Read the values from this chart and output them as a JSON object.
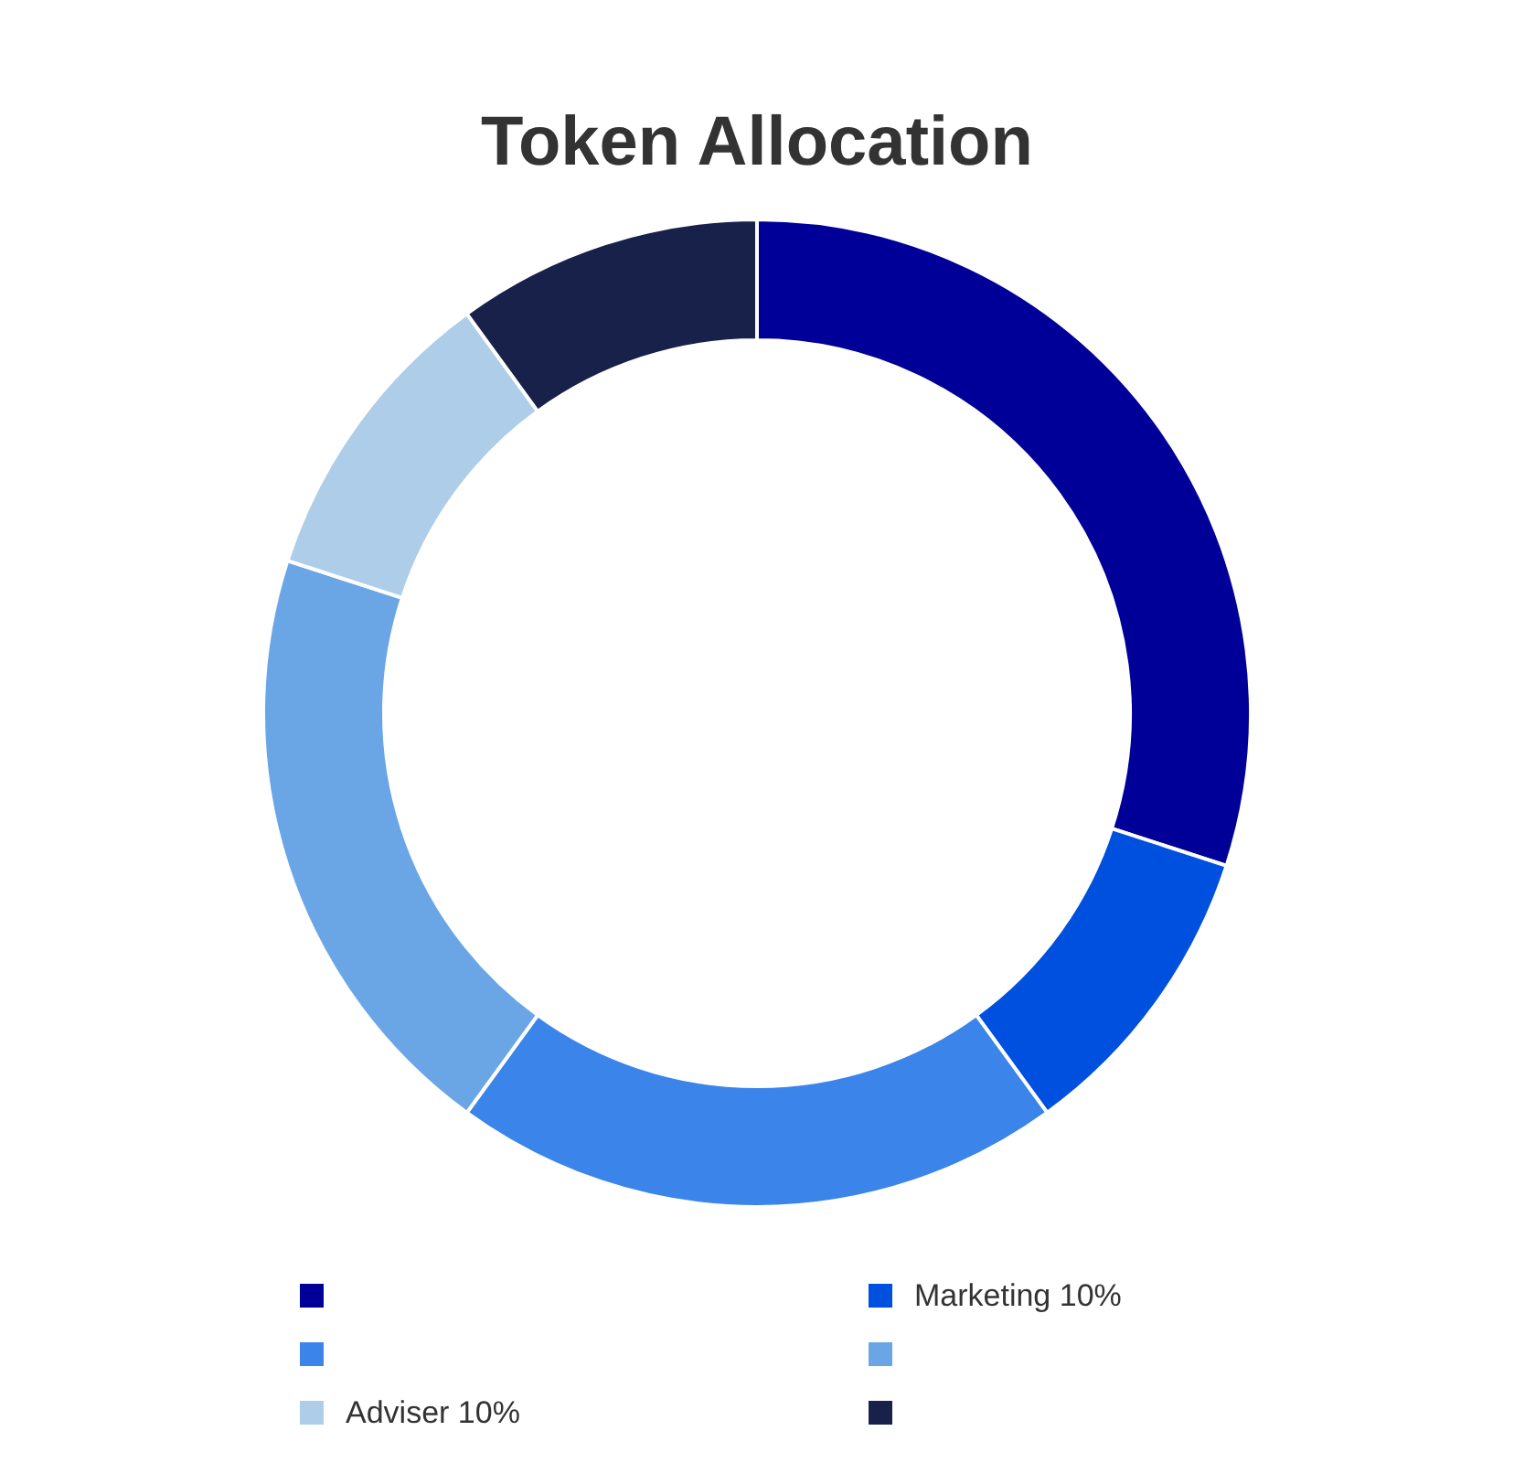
{
  "chart_data": {
    "type": "donut",
    "title": "Token Allocation",
    "categories": [
      null,
      "Marketing 10%",
      null,
      null,
      "Adviser 10%",
      null
    ],
    "values": [
      30,
      10,
      20,
      20,
      10,
      10
    ],
    "colors": [
      "#000099",
      "#0050e0",
      "#3a84ea",
      "#6aa6e6",
      "#aecde8",
      "#17214a"
    ],
    "legend": "bottom"
  }
}
